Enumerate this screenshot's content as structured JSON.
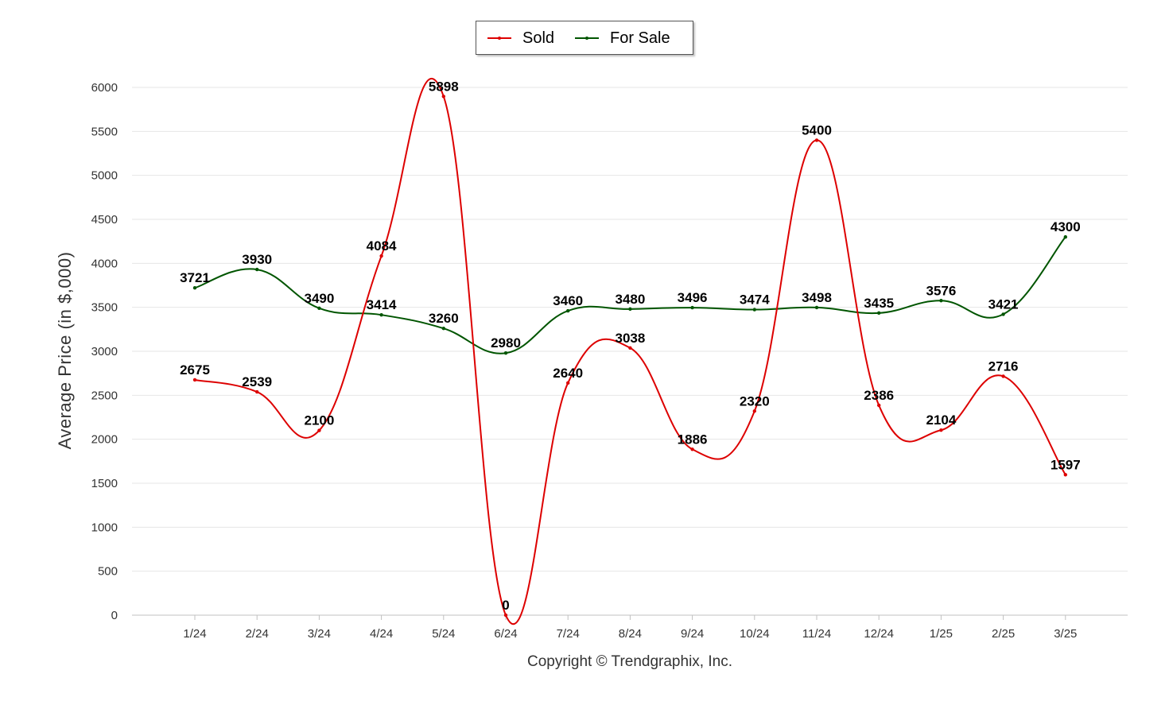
{
  "chart_data": {
    "type": "line",
    "categories": [
      "1/24",
      "2/24",
      "3/24",
      "4/24",
      "5/24",
      "6/24",
      "7/24",
      "8/24",
      "9/24",
      "10/24",
      "11/24",
      "12/24",
      "1/25",
      "2/25",
      "3/25"
    ],
    "series": [
      {
        "name": "Sold",
        "color": "#dd0000",
        "values": [
          2675,
          2539,
          2100,
          4084,
          5898,
          0,
          2640,
          3038,
          1886,
          2320,
          5400,
          2386,
          2104,
          2716,
          1597
        ]
      },
      {
        "name": "For Sale",
        "color": "#005500",
        "values": [
          3721,
          3930,
          3490,
          3414,
          3260,
          2980,
          3460,
          3480,
          3496,
          3474,
          3498,
          3435,
          3576,
          3421,
          4300
        ]
      }
    ],
    "ylabel": "Average Price (in $,000)",
    "ylim": [
      0,
      6000
    ],
    "yticks": [
      0,
      500,
      1000,
      1500,
      2000,
      2500,
      3000,
      3500,
      4000,
      4500,
      5000,
      5500,
      6000
    ],
    "grid": true,
    "legend_position": "top-center",
    "smooth": true
  },
  "footer": {
    "copyright": "Copyright © Trendgraphix, Inc."
  }
}
